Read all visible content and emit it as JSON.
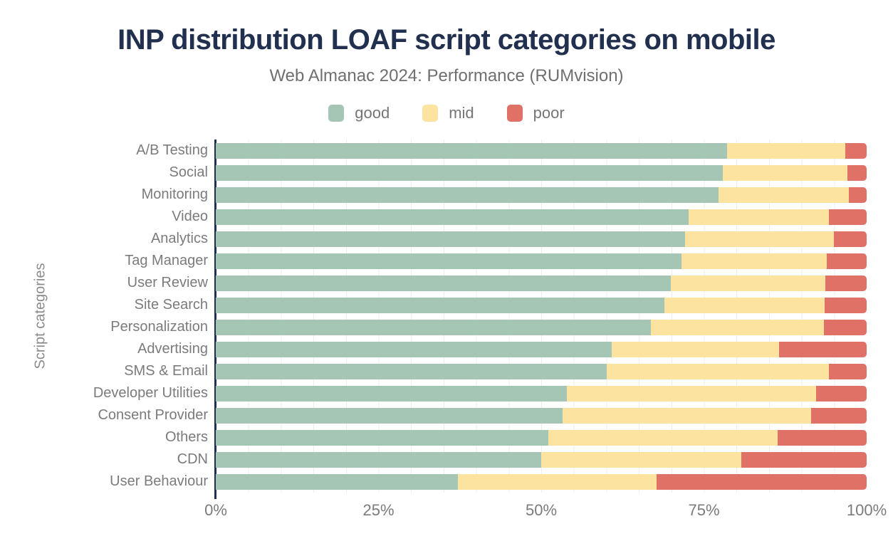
{
  "title": "INP distribution LOAF script categories on mobile",
  "subtitle": "Web Almanac 2024: Performance (RUMvision)",
  "y_axis_label": "Script categories",
  "legend": [
    {
      "label": "good",
      "color": "#a5c6b4"
    },
    {
      "label": "mid",
      "color": "#fce4a0"
    },
    {
      "label": "poor",
      "color": "#df7166"
    }
  ],
  "colors": {
    "title": "#22304f",
    "subtitle": "#6f6f6f",
    "axis_line": "#22304f",
    "tick_text": "#7b7b7b",
    "gridline": "#ededed",
    "good": "#a5c6b4",
    "mid": "#fce4a0",
    "poor": "#df7166"
  },
  "chart_data": {
    "type": "bar",
    "stacked": true,
    "orientation": "horizontal",
    "title": "INP distribution LOAF script categories on mobile",
    "subtitle": "Web Almanac 2024: Performance (RUMvision)",
    "xlabel": "",
    "ylabel": "Script categories",
    "xlim": [
      0,
      100
    ],
    "x_tick_labels": [
      "0%",
      "25%",
      "50%",
      "75%",
      "100%"
    ],
    "grid": "vertical minor gridlines every 5%",
    "legend_position": "top",
    "categories": [
      "A/B Testing",
      "Social",
      "Monitoring",
      "Video",
      "Analytics",
      "Tag Manager",
      "User Review",
      "Site Search",
      "Personalization",
      "Advertising",
      "SMS & Email",
      "Developer Utilities",
      "Consent Provider",
      "Others",
      "CDN",
      "User Behaviour"
    ],
    "series": [
      {
        "name": "good",
        "color": "#a5c6b4",
        "values": [
          78.6,
          77.9,
          77.2,
          72.6,
          72.1,
          71.5,
          69.9,
          68.9,
          66.9,
          60.8,
          60.1,
          53.9,
          53.3,
          51.1,
          50.0,
          37.2
        ]
      },
      {
        "name": "mid",
        "color": "#fce4a0",
        "values": [
          18.1,
          19.1,
          20.1,
          21.6,
          22.9,
          22.4,
          23.8,
          24.7,
          26.5,
          25.7,
          34.1,
          38.3,
          38.2,
          35.2,
          30.7,
          30.5
        ]
      },
      {
        "name": "poor",
        "color": "#df7166",
        "values": [
          3.3,
          3.0,
          2.7,
          5.8,
          5.0,
          6.1,
          6.3,
          6.4,
          6.6,
          13.5,
          5.8,
          7.8,
          8.5,
          13.7,
          19.3,
          32.3
        ]
      }
    ]
  }
}
